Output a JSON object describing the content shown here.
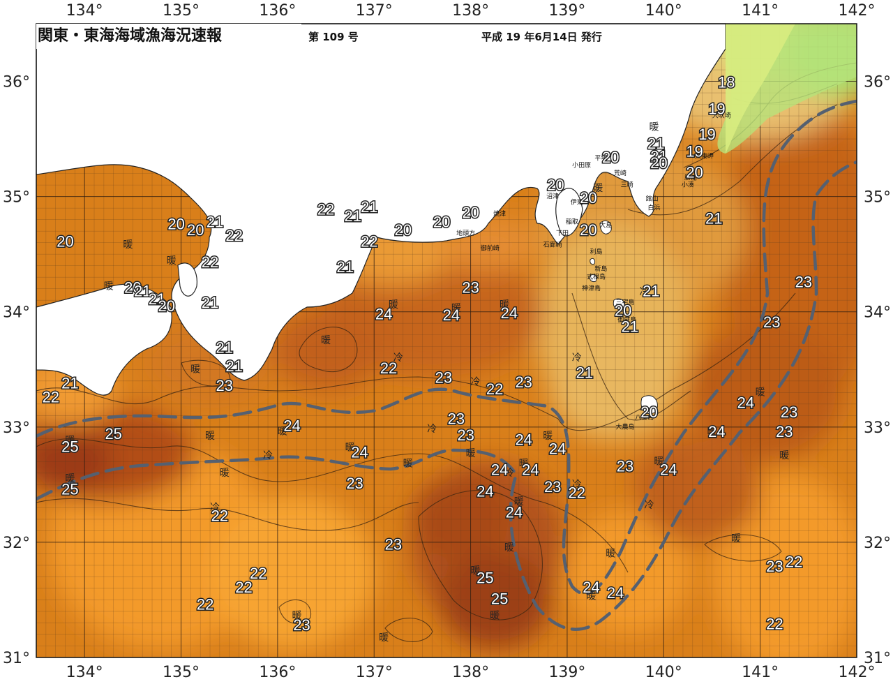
{
  "header": {
    "title": "関東・東海海域漁海況速報",
    "issue": "第 109 号",
    "date": "平成 19 年6月14日 発行"
  },
  "axes": {
    "lon_labels": [
      "134°",
      "135°",
      "136°",
      "137°",
      "138°",
      "139°",
      "140°",
      "141°",
      "142°"
    ],
    "lat_labels": [
      "36°",
      "35°",
      "34°",
      "33°",
      "32°",
      "31°"
    ]
  },
  "map_data": {
    "type": "sea_surface_temperature_map",
    "lon_range": [
      133.5,
      142
    ],
    "lat_range": [
      31,
      36.5
    ],
    "isotherm_labels": [
      {
        "text": "18",
        "lon": 140.65,
        "lat": 35.98
      },
      {
        "text": "19",
        "lon": 140.55,
        "lat": 35.75
      },
      {
        "text": "19",
        "lon": 140.45,
        "lat": 35.53
      },
      {
        "text": "19",
        "lon": 140.32,
        "lat": 35.38
      },
      {
        "text": "20",
        "lon": 140.32,
        "lat": 35.2
      },
      {
        "text": "21",
        "lon": 139.92,
        "lat": 35.45
      },
      {
        "text": "21",
        "lon": 139.95,
        "lat": 35.34
      },
      {
        "text": "20",
        "lon": 139.95,
        "lat": 35.28
      },
      {
        "text": "20",
        "lon": 139.45,
        "lat": 35.33
      },
      {
        "text": "20",
        "lon": 138.88,
        "lat": 35.09
      },
      {
        "text": "20",
        "lon": 139.22,
        "lat": 34.98
      },
      {
        "text": "20",
        "lon": 139.22,
        "lat": 34.7
      },
      {
        "text": "21",
        "lon": 140.52,
        "lat": 34.8
      },
      {
        "text": "21",
        "lon": 139.87,
        "lat": 34.17
      },
      {
        "text": "20",
        "lon": 139.58,
        "lat": 34.0
      },
      {
        "text": "21",
        "lon": 139.65,
        "lat": 33.86
      },
      {
        "text": "21",
        "lon": 139.18,
        "lat": 33.46
      },
      {
        "text": "20",
        "lon": 139.85,
        "lat": 33.12
      },
      {
        "text": "23",
        "lon": 141.45,
        "lat": 34.25
      },
      {
        "text": "23",
        "lon": 141.12,
        "lat": 33.9
      },
      {
        "text": "24",
        "lon": 140.85,
        "lat": 33.2
      },
      {
        "text": "23",
        "lon": 141.3,
        "lat": 33.12
      },
      {
        "text": "24",
        "lon": 140.55,
        "lat": 32.95
      },
      {
        "text": "23",
        "lon": 141.25,
        "lat": 32.95
      },
      {
        "text": "24",
        "lon": 140.05,
        "lat": 32.62
      },
      {
        "text": "23",
        "lon": 139.6,
        "lat": 32.65
      },
      {
        "text": "22",
        "lon": 139.1,
        "lat": 32.42
      },
      {
        "text": "23",
        "lon": 138.85,
        "lat": 32.47
      },
      {
        "text": "24",
        "lon": 138.62,
        "lat": 32.62
      },
      {
        "text": "24",
        "lon": 138.45,
        "lat": 32.25
      },
      {
        "text": "24",
        "lon": 138.15,
        "lat": 32.43
      },
      {
        "text": "24",
        "lon": 138.3,
        "lat": 32.62
      },
      {
        "text": "24",
        "lon": 138.55,
        "lat": 32.88
      },
      {
        "text": "24",
        "lon": 138.9,
        "lat": 32.8
      },
      {
        "text": "23",
        "lon": 138.55,
        "lat": 33.38
      },
      {
        "text": "22",
        "lon": 138.25,
        "lat": 33.32
      },
      {
        "text": "23",
        "lon": 137.72,
        "lat": 33.42
      },
      {
        "text": "23",
        "lon": 137.85,
        "lat": 33.06
      },
      {
        "text": "23",
        "lon": 137.95,
        "lat": 32.92
      },
      {
        "text": "24",
        "lon": 136.85,
        "lat": 32.77
      },
      {
        "text": "23",
        "lon": 136.8,
        "lat": 32.5
      },
      {
        "text": "24",
        "lon": 136.15,
        "lat": 33.0
      },
      {
        "text": "22",
        "lon": 135.4,
        "lat": 32.22
      },
      {
        "text": "25",
        "lon": 134.3,
        "lat": 32.93
      },
      {
        "text": "25",
        "lon": 133.85,
        "lat": 32.82
      },
      {
        "text": "25",
        "lon": 133.85,
        "lat": 32.45
      },
      {
        "text": "22",
        "lon": 133.65,
        "lat": 33.25
      },
      {
        "text": "21",
        "lon": 133.85,
        "lat": 33.37
      },
      {
        "text": "23",
        "lon": 135.45,
        "lat": 33.35
      },
      {
        "text": "21",
        "lon": 135.55,
        "lat": 33.52
      },
      {
        "text": "21",
        "lon": 135.45,
        "lat": 33.68
      },
      {
        "text": "21",
        "lon": 135.3,
        "lat": 34.07
      },
      {
        "text": "22",
        "lon": 135.3,
        "lat": 34.42
      },
      {
        "text": "22",
        "lon": 135.55,
        "lat": 34.65
      },
      {
        "text": "21",
        "lon": 135.35,
        "lat": 34.77
      },
      {
        "text": "20",
        "lon": 135.15,
        "lat": 34.7
      },
      {
        "text": "20",
        "lon": 134.95,
        "lat": 34.75
      },
      {
        "text": "20",
        "lon": 133.8,
        "lat": 34.6
      },
      {
        "text": "20",
        "lon": 134.5,
        "lat": 34.2
      },
      {
        "text": "21",
        "lon": 134.6,
        "lat": 34.17
      },
      {
        "text": "21",
        "lon": 134.75,
        "lat": 34.1
      },
      {
        "text": "20",
        "lon": 134.85,
        "lat": 34.04
      },
      {
        "text": "22",
        "lon": 136.5,
        "lat": 34.88
      },
      {
        "text": "21",
        "lon": 136.95,
        "lat": 34.9
      },
      {
        "text": "21",
        "lon": 136.78,
        "lat": 34.82
      },
      {
        "text": "22",
        "lon": 136.95,
        "lat": 34.6
      },
      {
        "text": "20",
        "lon": 137.3,
        "lat": 34.7
      },
      {
        "text": "20",
        "lon": 137.7,
        "lat": 34.77
      },
      {
        "text": "20",
        "lon": 138.0,
        "lat": 34.85
      },
      {
        "text": "21",
        "lon": 136.7,
        "lat": 34.38
      },
      {
        "text": "23",
        "lon": 138.0,
        "lat": 34.2
      },
      {
        "text": "24",
        "lon": 137.1,
        "lat": 33.97
      },
      {
        "text": "24",
        "lon": 137.8,
        "lat": 33.96
      },
      {
        "text": "24",
        "lon": 138.4,
        "lat": 33.98
      },
      {
        "text": "22",
        "lon": 137.15,
        "lat": 33.5
      },
      {
        "text": "23",
        "lon": 137.2,
        "lat": 31.97
      },
      {
        "text": "22",
        "lon": 135.8,
        "lat": 31.72
      },
      {
        "text": "22",
        "lon": 135.65,
        "lat": 31.6
      },
      {
        "text": "22",
        "lon": 135.25,
        "lat": 31.45
      },
      {
        "text": "23",
        "lon": 136.25,
        "lat": 31.27
      },
      {
        "text": "25",
        "lon": 138.15,
        "lat": 31.68
      },
      {
        "text": "25",
        "lon": 138.3,
        "lat": 31.5
      },
      {
        "text": "24",
        "lon": 139.25,
        "lat": 31.6
      },
      {
        "text": "24",
        "lon": 139.5,
        "lat": 31.55
      },
      {
        "text": "23",
        "lon": 141.15,
        "lat": 31.78
      },
      {
        "text": "22",
        "lon": 141.35,
        "lat": 31.82
      },
      {
        "text": "22",
        "lon": 141.15,
        "lat": 31.28
      }
    ],
    "markers": [
      {
        "text": "暖",
        "kind": "warm",
        "lon": 139.9,
        "lat": 35.6
      },
      {
        "text": "暖",
        "kind": "warm",
        "lon": 139.32,
        "lat": 35.07
      },
      {
        "text": "暖",
        "kind": "warm",
        "lon": 134.45,
        "lat": 34.58
      },
      {
        "text": "暖",
        "kind": "warm",
        "lon": 134.9,
        "lat": 34.44
      },
      {
        "text": "暖",
        "kind": "warm",
        "lon": 134.25,
        "lat": 34.22
      },
      {
        "text": "暖",
        "kind": "warm",
        "lon": 137.2,
        "lat": 34.06
      },
      {
        "text": "暖",
        "kind": "warm",
        "lon": 137.85,
        "lat": 34.03
      },
      {
        "text": "暖",
        "kind": "warm",
        "lon": 138.35,
        "lat": 34.06
      },
      {
        "text": "暖",
        "kind": "warm",
        "lon": 136.5,
        "lat": 33.75
      },
      {
        "text": "暖",
        "kind": "warm",
        "lon": 135.15,
        "lat": 33.5
      },
      {
        "text": "暖",
        "kind": "warm",
        "lon": 134.3,
        "lat": 32.93
      },
      {
        "text": "暖",
        "kind": "warm",
        "lon": 135.3,
        "lat": 32.92
      },
      {
        "text": "暖",
        "kind": "warm",
        "lon": 136.05,
        "lat": 32.96
      },
      {
        "text": "暖",
        "kind": "warm",
        "lon": 133.85,
        "lat": 32.88
      },
      {
        "text": "暖",
        "kind": "warm",
        "lon": 133.85,
        "lat": 32.55
      },
      {
        "text": "暖",
        "kind": "warm",
        "lon": 135.45,
        "lat": 32.6
      },
      {
        "text": "暖",
        "kind": "warm",
        "lon": 136.75,
        "lat": 32.82
      },
      {
        "text": "暖",
        "kind": "warm",
        "lon": 137.35,
        "lat": 32.68
      },
      {
        "text": "暖",
        "kind": "warm",
        "lon": 138.0,
        "lat": 32.77
      },
      {
        "text": "暖",
        "kind": "warm",
        "lon": 138.8,
        "lat": 32.92
      },
      {
        "text": "暖",
        "kind": "warm",
        "lon": 138.55,
        "lat": 32.68
      },
      {
        "text": "暖",
        "kind": "warm",
        "lon": 138.5,
        "lat": 32.35
      },
      {
        "text": "暖",
        "kind": "warm",
        "lon": 138.4,
        "lat": 31.95
      },
      {
        "text": "暖",
        "kind": "warm",
        "lon": 138.05,
        "lat": 31.75
      },
      {
        "text": "暖",
        "kind": "warm",
        "lon": 138.25,
        "lat": 31.36
      },
      {
        "text": "暖",
        "kind": "warm",
        "lon": 137.1,
        "lat": 31.17
      },
      {
        "text": "暖",
        "kind": "warm",
        "lon": 136.2,
        "lat": 31.36
      },
      {
        "text": "暖",
        "kind": "warm",
        "lon": 139.25,
        "lat": 31.53
      },
      {
        "text": "暖",
        "kind": "warm",
        "lon": 139.45,
        "lat": 31.9
      },
      {
        "text": "暖",
        "kind": "warm",
        "lon": 139.95,
        "lat": 32.7
      },
      {
        "text": "暖",
        "kind": "warm",
        "lon": 140.5,
        "lat": 32.96
      },
      {
        "text": "暖",
        "kind": "warm",
        "lon": 141.0,
        "lat": 33.3
      },
      {
        "text": "暖",
        "kind": "warm",
        "lon": 141.25,
        "lat": 32.75
      },
      {
        "text": "暖",
        "kind": "warm",
        "lon": 140.75,
        "lat": 32.03
      },
      {
        "text": "冷",
        "kind": "cold",
        "lon": 137.25,
        "lat": 33.6
      },
      {
        "text": "冷",
        "kind": "cold",
        "lon": 138.05,
        "lat": 33.39
      },
      {
        "text": "冷",
        "kind": "cold",
        "lon": 139.1,
        "lat": 33.6
      },
      {
        "text": "冷",
        "kind": "cold",
        "lon": 139.8,
        "lat": 34.17
      },
      {
        "text": "冷",
        "kind": "cold",
        "lon": 137.6,
        "lat": 32.98
      },
      {
        "text": "冷",
        "kind": "cold",
        "lon": 135.9,
        "lat": 32.75
      },
      {
        "text": "冷",
        "kind": "cold",
        "lon": 135.35,
        "lat": 32.3
      },
      {
        "text": "冷",
        "kind": "cold",
        "lon": 138.4,
        "lat": 32.6
      },
      {
        "text": "冷",
        "kind": "cold",
        "lon": 139.1,
        "lat": 32.5
      },
      {
        "text": "冷",
        "kind": "cold",
        "lon": 139.85,
        "lat": 32.32
      }
    ],
    "place_labels": [
      {
        "text": "大吠埼",
        "lon": 140.6,
        "lat": 35.7
      },
      {
        "text": "太東岬",
        "lon": 140.42,
        "lat": 35.35
      },
      {
        "text": "勝浦",
        "lon": 140.28,
        "lat": 35.16
      },
      {
        "text": "小湊",
        "lon": 140.25,
        "lat": 35.1
      },
      {
        "text": "小田原",
        "lon": 139.15,
        "lat": 35.27
      },
      {
        "text": "平塚",
        "lon": 139.35,
        "lat": 35.33
      },
      {
        "text": "荒崎",
        "lon": 139.55,
        "lat": 35.2
      },
      {
        "text": "三崎",
        "lon": 139.62,
        "lat": 35.1
      },
      {
        "text": "館山",
        "lon": 139.88,
        "lat": 34.98
      },
      {
        "text": "白浜",
        "lon": 139.9,
        "lat": 34.9
      },
      {
        "text": "沼津",
        "lon": 138.85,
        "lat": 35.0
      },
      {
        "text": "伊東",
        "lon": 139.1,
        "lat": 34.95
      },
      {
        "text": "稲取",
        "lon": 139.05,
        "lat": 34.78
      },
      {
        "text": "下田",
        "lon": 138.95,
        "lat": 34.68
      },
      {
        "text": "石廊崎",
        "lon": 138.85,
        "lat": 34.58
      },
      {
        "text": "焼津",
        "lon": 138.3,
        "lat": 34.85
      },
      {
        "text": "地頭方",
        "lon": 137.95,
        "lat": 34.68
      },
      {
        "text": "御前崎",
        "lon": 138.2,
        "lat": 34.55
      },
      {
        "text": "大島",
        "lon": 139.4,
        "lat": 34.75
      },
      {
        "text": "利島",
        "lon": 139.3,
        "lat": 34.52
      },
      {
        "text": "新島",
        "lon": 139.35,
        "lat": 34.37
      },
      {
        "text": "式根島",
        "lon": 139.3,
        "lat": 34.3
      },
      {
        "text": "神津島",
        "lon": 139.25,
        "lat": 34.2
      },
      {
        "text": "三宅島",
        "lon": 139.6,
        "lat": 34.08
      },
      {
        "text": "御蔵島",
        "lon": 139.62,
        "lat": 33.93
      },
      {
        "text": "八丈島",
        "lon": 139.8,
        "lat": 33.08
      },
      {
        "text": "大農島",
        "lon": 139.6,
        "lat": 33.0
      }
    ]
  }
}
